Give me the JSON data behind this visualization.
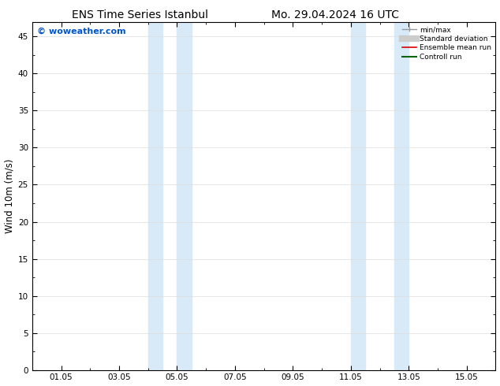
{
  "title_left": "ENS Time Series Istanbul",
  "title_right": "Mo. 29.04.2024 16 UTC",
  "ylabel": "Wind 10m (m/s)",
  "watermark": "© woweather.com",
  "watermark_color": "#0055cc",
  "x_tick_labels": [
    "01.05",
    "03.05",
    "05.05",
    "07.05",
    "09.05",
    "11.05",
    "13.05",
    "15.05"
  ],
  "x_tick_positions": [
    1,
    3,
    5,
    7,
    9,
    11,
    13,
    15
  ],
  "xlim": [
    0,
    16
  ],
  "ylim": [
    0,
    47
  ],
  "yticks": [
    0,
    5,
    10,
    15,
    20,
    25,
    30,
    35,
    40,
    45
  ],
  "shaded_bands": [
    {
      "xmin": 4.0,
      "xmax": 4.5,
      "color": "#d8eaf8"
    },
    {
      "xmin": 5.0,
      "xmax": 5.5,
      "color": "#d8eaf8"
    },
    {
      "xmin": 11.0,
      "xmax": 11.5,
      "color": "#d8eaf8"
    },
    {
      "xmin": 12.5,
      "xmax": 13.0,
      "color": "#d8eaf8"
    }
  ],
  "legend_entries": [
    {
      "label": "min/max",
      "color": "#999999",
      "lw": 1.0
    },
    {
      "label": "Standard deviation",
      "color": "#cccccc",
      "lw": 5
    },
    {
      "label": "Ensemble mean run",
      "color": "#dd0000",
      "lw": 1.0
    },
    {
      "label": "Controll run",
      "color": "#006600",
      "lw": 1.5
    }
  ],
  "bg_color": "#ffffff",
  "plot_bg_color": "#ffffff",
  "grid_color": "#dddddd",
  "title_fontsize": 10,
  "tick_fontsize": 7.5,
  "ylabel_fontsize": 8.5,
  "watermark_fontsize": 8
}
